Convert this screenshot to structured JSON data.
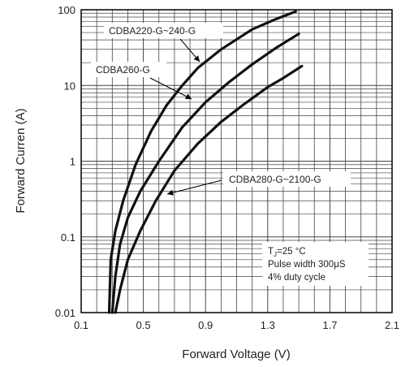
{
  "chart_data": {
    "type": "line",
    "xlabel": "Forward Voltage (V)",
    "ylabel": "Forward Curren (A)",
    "xlim": [
      0.1,
      2.1
    ],
    "ylim": [
      0.01,
      100
    ],
    "yscale": "log",
    "grid": true,
    "x_ticks": [
      "0.1",
      "0.5",
      "0.9",
      "1.3",
      "1.7",
      "2.1"
    ],
    "y_ticks": [
      "0.01",
      "0.1",
      "1",
      "10",
      "100"
    ],
    "series": [
      {
        "name": "CDBA220-G~240-G",
        "x": [
          0.28,
          0.29,
          0.32,
          0.37,
          0.45,
          0.55,
          0.65,
          0.75,
          0.85,
          1.0,
          1.2,
          1.35,
          1.48
        ],
        "y": [
          0.01,
          0.05,
          0.12,
          0.3,
          0.9,
          2.5,
          5.5,
          10,
          17,
          30,
          55,
          75,
          95
        ]
      },
      {
        "name": "CDBA260-G",
        "x": [
          0.3,
          0.32,
          0.35,
          0.4,
          0.48,
          0.6,
          0.75,
          0.9,
          1.05,
          1.2,
          1.35,
          1.5
        ],
        "y": [
          0.01,
          0.03,
          0.08,
          0.18,
          0.4,
          1.0,
          2.8,
          6,
          11,
          19,
          31,
          48
        ]
      },
      {
        "name": "CDBA280-G~2100-G",
        "x": [
          0.32,
          0.35,
          0.4,
          0.48,
          0.58,
          0.7,
          0.85,
          1.0,
          1.15,
          1.3,
          1.4,
          1.52
        ],
        "y": [
          0.01,
          0.02,
          0.05,
          0.12,
          0.3,
          0.75,
          1.7,
          3.3,
          5.7,
          9.5,
          12.5,
          18
        ]
      }
    ],
    "annotation": {
      "line1": "TJ=25 °C",
      "line2": "Pulse width 300μS",
      "line3": "4% duty cycle"
    },
    "colors": {
      "curve": "#111111",
      "grid": "#444444",
      "axis": "#000000"
    }
  }
}
